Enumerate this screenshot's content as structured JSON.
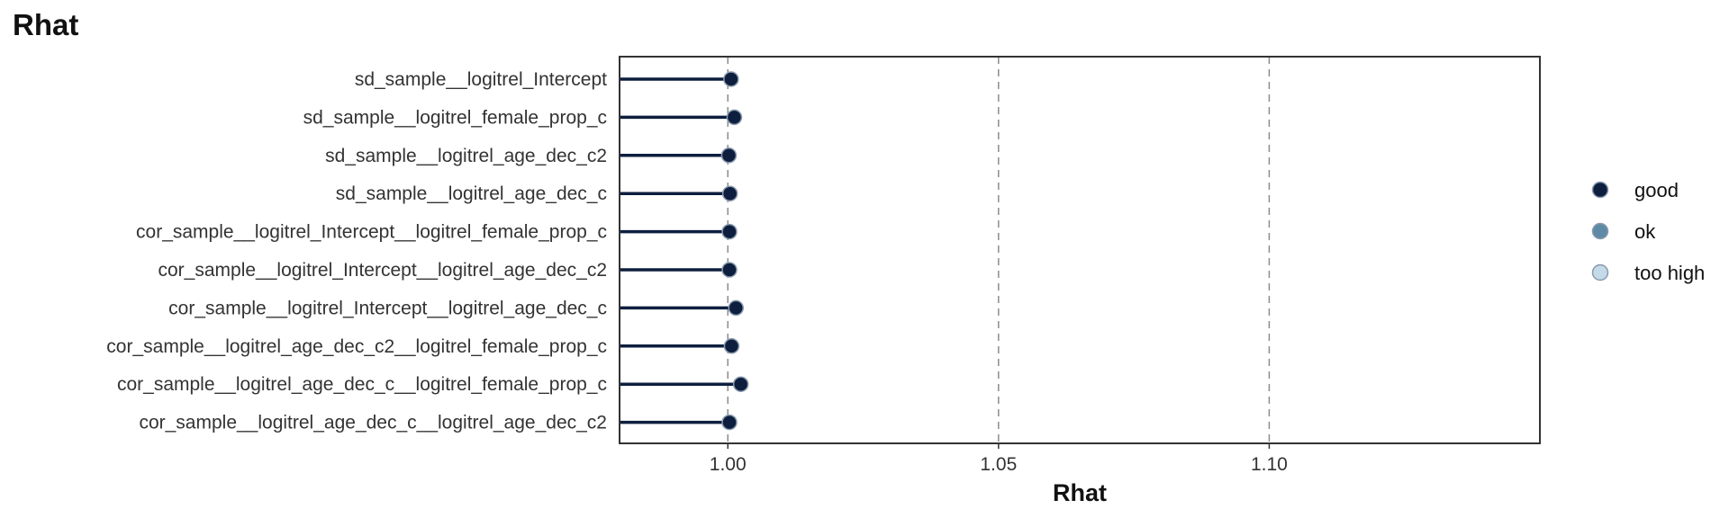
{
  "chart_data": {
    "type": "lollipop",
    "title": "Rhat",
    "xlabel": "Rhat",
    "ylabel": "",
    "xlim": [
      0.98,
      1.15
    ],
    "x_ticks": [
      1.0,
      1.05,
      1.1
    ],
    "x_tick_labels": [
      "1.00",
      "1.05",
      "1.10"
    ],
    "reference_lines": [
      1.05,
      1.1
    ],
    "categories": [
      "sd_sample__logitrel_Intercept",
      "sd_sample__logitrel_female_prop_c",
      "sd_sample__logitrel_age_dec_c2",
      "sd_sample__logitrel_age_dec_c",
      "cor_sample__logitrel_Intercept__logitrel_female_prop_c",
      "cor_sample__logitrel_Intercept__logitrel_age_dec_c2",
      "cor_sample__logitrel_Intercept__logitrel_age_dec_c",
      "cor_sample__logitrel_age_dec_c2__logitrel_female_prop_c",
      "cor_sample__logitrel_age_dec_c__logitrel_female_prop_c",
      "cor_sample__logitrel_age_dec_c__logitrel_age_dec_c2"
    ],
    "values": [
      1.0006,
      1.0012,
      1.0002,
      1.0004,
      1.0003,
      1.0003,
      1.0015,
      1.0007,
      1.0024,
      1.0003
    ],
    "status": [
      "good",
      "good",
      "good",
      "good",
      "good",
      "good",
      "good",
      "good",
      "good",
      "good"
    ],
    "legend": {
      "position": "right",
      "entries": [
        {
          "label": "good",
          "color": "#0d1e3e"
        },
        {
          "label": "ok",
          "color": "#5f8aa6"
        },
        {
          "label": "too high",
          "color": "#c4dae8"
        }
      ]
    },
    "grid": false
  },
  "colors": {
    "good": "#0d1e3e",
    "ok": "#5f8aa6",
    "too_high": "#c4dae8",
    "reference_line": "#8c8c8c",
    "panel_border": "#333333"
  }
}
